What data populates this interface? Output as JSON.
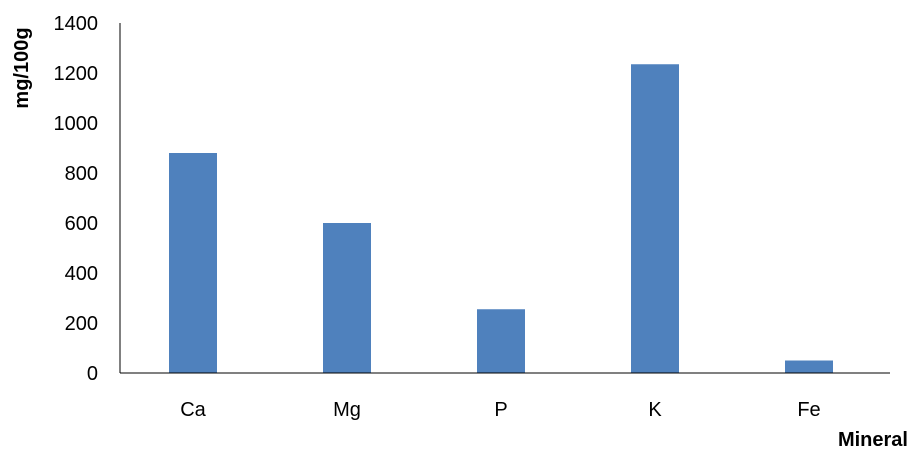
{
  "chart_data": {
    "type": "bar",
    "categories": [
      "Ca",
      "Mg",
      "P",
      "K",
      "Fe"
    ],
    "values": [
      880,
      600,
      255,
      1235,
      50
    ],
    "xlabel": "Mineral",
    "ylabel": "mg/100g",
    "ylim": [
      0,
      1400
    ],
    "yticks": [
      0,
      200,
      400,
      600,
      800,
      1000,
      1200,
      1400
    ],
    "bar_color": "#4f81bd",
    "grid": false,
    "legend": "none"
  }
}
